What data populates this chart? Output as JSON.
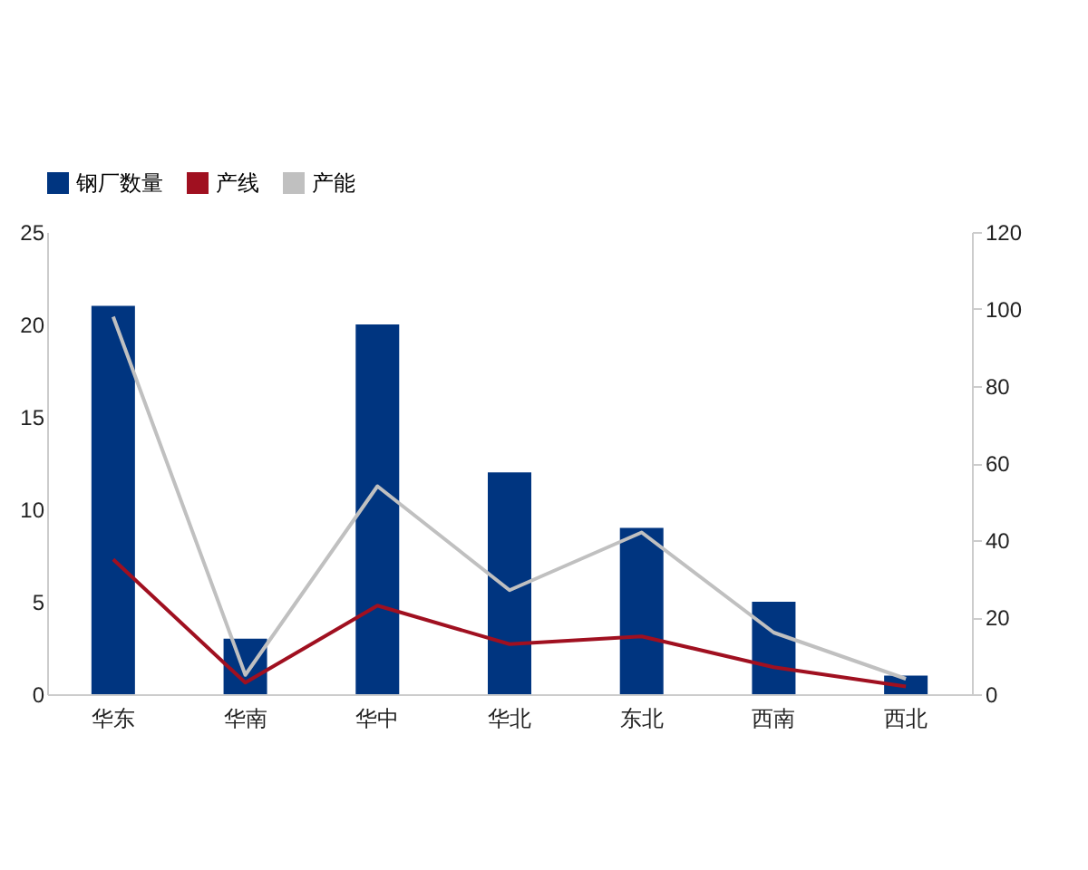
{
  "chart_data": {
    "type": "bar",
    "categories": [
      "华东",
      "华南",
      "华中",
      "华北",
      "东北",
      "西南",
      "西北"
    ],
    "series": [
      {
        "name": "钢厂数量",
        "color": "#003580",
        "values": [
          21,
          3,
          20,
          12,
          9,
          5,
          1
        ]
      },
      {
        "name": "产线",
        "type": "line",
        "axis": "y2",
        "color": "#a01020",
        "values": [
          35,
          3,
          23,
          13,
          15,
          7,
          2
        ]
      },
      {
        "name": "产能",
        "type": "line",
        "axis": "y2",
        "color": "#c0c0c0",
        "values": [
          98,
          5,
          54,
          27,
          42,
          16,
          4
        ]
      }
    ],
    "ylim": [
      0,
      25
    ],
    "yticks": [
      0,
      5,
      10,
      15,
      20,
      25
    ],
    "y2lim": [
      0,
      120
    ],
    "y2ticks": [
      0,
      20,
      40,
      60,
      80,
      100,
      120
    ],
    "grid": false,
    "legend": "top",
    "marker": "none",
    "line_style": "solid"
  }
}
